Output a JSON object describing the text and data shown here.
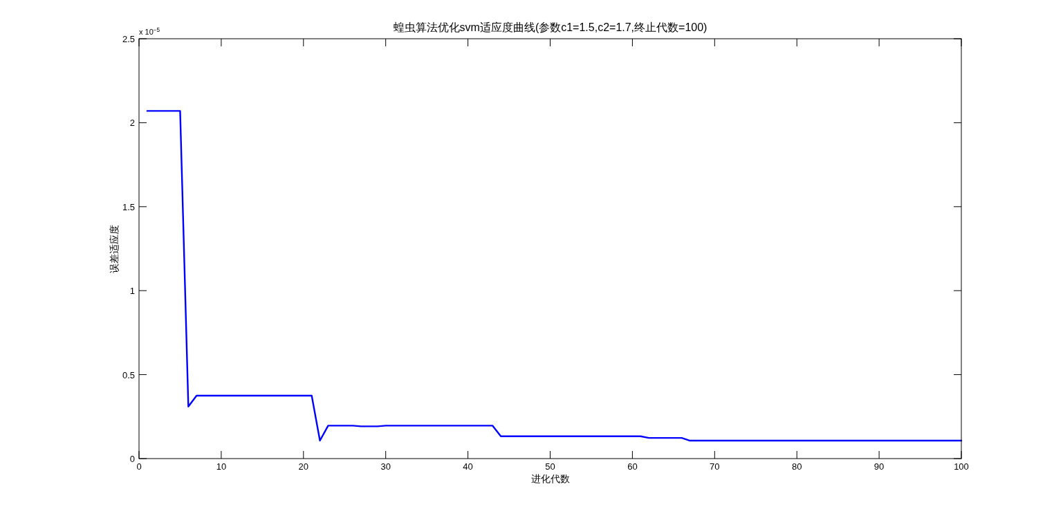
{
  "chart_data": {
    "type": "line",
    "title": "蝗虫算法优化svm适应度曲线(参数c1=1.5,c2=1.7,终止代数=100)",
    "xlabel": "进化代数",
    "ylabel": "误差适应度",
    "annotations": [
      "x 10$^{−5}$"
    ],
    "series": [
      {
        "color": "#0000ff",
        "x": [
          1,
          5,
          6,
          7,
          21,
          22,
          23,
          26,
          27,
          29,
          30,
          43,
          44,
          61,
          62,
          66,
          67,
          100
        ],
        "values": [
          2.07,
          2.07,
          0.31,
          0.375,
          0.375,
          0.107,
          0.196,
          0.196,
          0.192,
          0.192,
          0.196,
          0.196,
          0.133,
          0.133,
          0.123,
          0.123,
          0.107,
          0.107
        ]
      }
    ],
    "xlim": [
      0,
      100
    ],
    "ylim": [
      0,
      2.5
    ],
    "xticks": [
      0,
      10,
      20,
      30,
      40,
      50,
      60,
      70,
      80,
      90,
      100
    ],
    "yticks": [
      0,
      0.5,
      1,
      1.5,
      2,
      2.5
    ],
    "line_style": "solid"
  }
}
